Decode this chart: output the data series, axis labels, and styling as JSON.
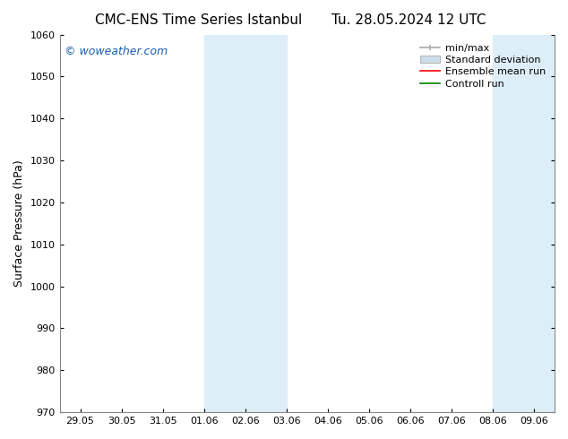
{
  "title_left": "CMC-ENS Time Series Istanbul",
  "title_right": "Tu. 28.05.2024 12 UTC",
  "ylabel": "Surface Pressure (hPa)",
  "ylim": [
    970,
    1060
  ],
  "yticks": [
    970,
    980,
    990,
    1000,
    1010,
    1020,
    1030,
    1040,
    1050,
    1060
  ],
  "xtick_labels": [
    "29.05",
    "30.05",
    "31.05",
    "01.06",
    "02.06",
    "03.06",
    "04.06",
    "05.06",
    "06.06",
    "07.06",
    "08.06",
    "09.06"
  ],
  "xtick_positions": [
    0,
    1,
    2,
    3,
    4,
    5,
    6,
    7,
    8,
    9,
    10,
    11
  ],
  "xlim": [
    -0.5,
    11.5
  ],
  "shaded_bands": [
    {
      "x_start": 3.0,
      "x_end": 3.67,
      "color": "#ddeef8"
    },
    {
      "x_start": 3.67,
      "x_end": 5.0,
      "color": "#ddeef8"
    },
    {
      "x_start": 10.0,
      "x_end": 10.67,
      "color": "#ddeef8"
    },
    {
      "x_start": 10.67,
      "x_end": 11.5,
      "color": "#ddeef8"
    }
  ],
  "shaded_bands2": [
    {
      "x_start": 3.0,
      "x_end": 5.0,
      "color": "#ddeef8"
    },
    {
      "x_start": 10.0,
      "x_end": 11.5,
      "color": "#ddeef8"
    }
  ],
  "watermark_text": "© woweather.com",
  "watermark_color": "#1a5fb4",
  "background_color": "#ffffff",
  "spine_color": "#888888",
  "tick_color": "#000000",
  "font_family": "DejaVu Sans",
  "title_fontsize": 11,
  "label_fontsize": 9,
  "tick_fontsize": 8,
  "legend_fontsize": 8,
  "min_max_color": "#aaaaaa",
  "std_dev_color": "#ccdde8",
  "ensemble_color": "red",
  "control_color": "green"
}
